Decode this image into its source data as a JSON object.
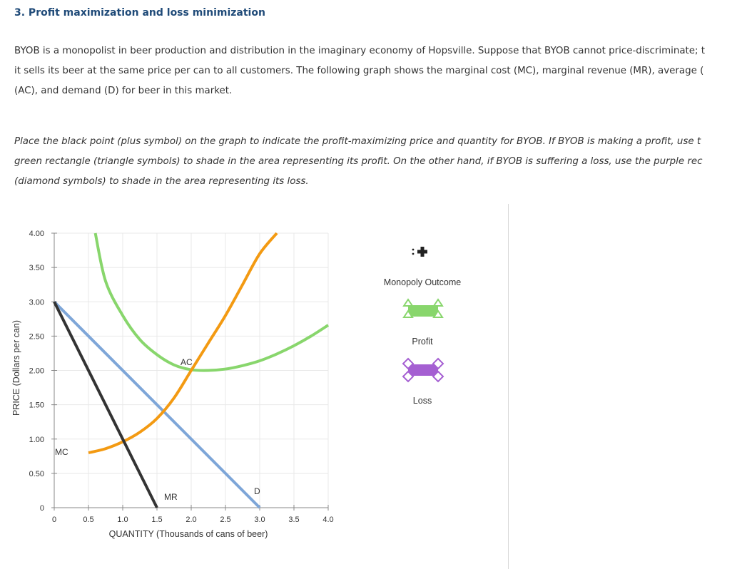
{
  "question": {
    "heading": "3. Profit maximization and loss minimization",
    "paragraph1": [
      "BYOB is a monopolist in beer production and distribution in the imaginary economy of Hopsville. Suppose that BYOB cannot price-discriminate; t",
      "it sells its beer at the same price per can to all customers. The following graph shows the marginal cost (MC), marginal revenue (MR), average (",
      "(AC), and demand (D) for beer in this market."
    ],
    "paragraph2": [
      "Place the black point (plus symbol) on the graph to indicate the profit-maximizing price and quantity for BYOB. If BYOB is making a profit, use t",
      "green rectangle (triangle symbols) to shade in the area representing its profit. On the other hand, if BYOB is suffering a loss, use the purple rec",
      "(diamond symbols) to shade in the area representing its loss."
    ]
  },
  "palette": {
    "monopoly_outcome": "Monopoly Outcome",
    "profit": "Profit",
    "loss": "Loss"
  },
  "colors": {
    "mr": "#333333",
    "demand": "#7ea6d8",
    "mc": "#f39a12",
    "ac": "#88d66c",
    "profit": "#88d66c",
    "loss": "#a55fd2",
    "grid": "#e8e8e8"
  },
  "chart_data": {
    "type": "line",
    "xlabel": "QUANTITY (Thousands of cans of beer)",
    "ylabel": "PRICE (Dollars per can)",
    "xlim": [
      0,
      4.0
    ],
    "ylim": [
      0,
      4.0
    ],
    "x_ticks": [
      "0",
      "0.5",
      "1.0",
      "1.5",
      "2.0",
      "2.5",
      "3.0",
      "3.5",
      "4.0"
    ],
    "x_tick_values": [
      0,
      0.5,
      1.0,
      1.5,
      2.0,
      2.5,
      3.0,
      3.5,
      4.0
    ],
    "y_ticks": [
      "0",
      "0.50",
      "1.00",
      "1.50",
      "2.00",
      "2.50",
      "3.00",
      "3.50",
      "4.00"
    ],
    "y_tick_values": [
      0,
      0.5,
      1.0,
      1.5,
      2.0,
      2.5,
      3.0,
      3.5,
      4.0
    ],
    "grid": true,
    "series": [
      {
        "name": "MR",
        "label": "MR",
        "x": [
          0,
          1.5
        ],
        "y": [
          3.0,
          0
        ]
      },
      {
        "name": "D",
        "label": "D",
        "x": [
          0,
          3.0
        ],
        "y": [
          3.0,
          0
        ]
      },
      {
        "name": "MC",
        "label": "MC",
        "x": [
          0.5,
          0.75,
          1.0,
          1.25,
          1.5,
          1.75,
          2.0,
          2.25,
          2.5,
          2.75,
          3.0,
          3.25
        ],
        "y": [
          0.8,
          0.86,
          0.96,
          1.1,
          1.3,
          1.6,
          2.0,
          2.4,
          2.8,
          3.25,
          3.7,
          4.0
        ]
      },
      {
        "name": "AC",
        "label": "AC",
        "x": [
          0.6,
          0.75,
          1.0,
          1.25,
          1.5,
          1.75,
          2.0,
          2.25,
          2.5,
          2.75,
          3.0,
          3.25,
          3.5,
          3.75,
          4.0
        ],
        "y": [
          4.0,
          3.3,
          2.8,
          2.45,
          2.23,
          2.08,
          2.01,
          2.0,
          2.02,
          2.07,
          2.14,
          2.24,
          2.36,
          2.5,
          2.66
        ]
      }
    ]
  }
}
